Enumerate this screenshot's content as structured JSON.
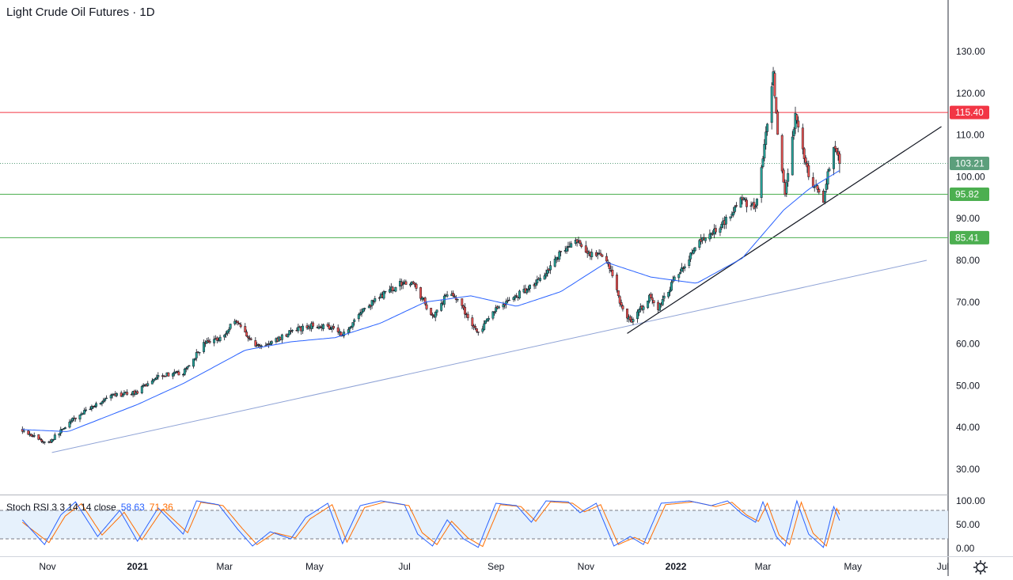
{
  "title": "Light Crude Oil Futures · 1D",
  "chart_data": {
    "type": "candlestick",
    "symbol": "Light Crude Oil Futures",
    "interval": "1D",
    "x_axis": {
      "tick_labels": [
        "Nov",
        "2021",
        "Mar",
        "May",
        "Jul",
        "Sep",
        "Nov",
        "2022",
        "Mar",
        "May",
        "Jul"
      ]
    },
    "y_axis": {
      "tick_labels": [
        "130.00",
        "120.00",
        "110.00",
        "100.00",
        "90.00",
        "80.00",
        "70.00",
        "60.00",
        "50.00",
        "40.00",
        "30.00"
      ],
      "ylim": [
        24,
        140
      ]
    },
    "anchor_points": [
      {
        "x": "2020-10-15",
        "close": 39.5
      },
      {
        "x": "2020-11-01",
        "close": 36.0
      },
      {
        "x": "2020-11-15",
        "close": 41.0
      },
      {
        "x": "2020-12-01",
        "close": 45.0
      },
      {
        "x": "2020-12-15",
        "close": 47.5
      },
      {
        "x": "2021-01-01",
        "close": 48.5
      },
      {
        "x": "2021-01-15",
        "close": 52.5
      },
      {
        "x": "2021-02-01",
        "close": 53.0
      },
      {
        "x": "2021-02-15",
        "close": 60.0
      },
      {
        "x": "2021-03-01",
        "close": 62.0
      },
      {
        "x": "2021-03-08",
        "close": 66.0
      },
      {
        "x": "2021-03-22",
        "close": 59.5
      },
      {
        "x": "2021-04-01",
        "close": 60.0
      },
      {
        "x": "2021-04-15",
        "close": 63.0
      },
      {
        "x": "2021-05-01",
        "close": 64.5
      },
      {
        "x": "2021-05-15",
        "close": 64.0
      },
      {
        "x": "2021-05-20",
        "close": 62.0
      },
      {
        "x": "2021-06-01",
        "close": 67.5
      },
      {
        "x": "2021-06-15",
        "close": 71.5
      },
      {
        "x": "2021-07-01",
        "close": 75.0
      },
      {
        "x": "2021-07-08",
        "close": 74.0
      },
      {
        "x": "2021-07-20",
        "close": 66.5
      },
      {
        "x": "2021-08-01",
        "close": 73.0
      },
      {
        "x": "2021-08-20",
        "close": 62.5
      },
      {
        "x": "2021-09-01",
        "close": 68.5
      },
      {
        "x": "2021-09-15",
        "close": 71.5
      },
      {
        "x": "2021-10-01",
        "close": 75.5
      },
      {
        "x": "2021-10-15",
        "close": 82.0
      },
      {
        "x": "2021-10-25",
        "close": 84.5
      },
      {
        "x": "2021-11-01",
        "close": 82.0
      },
      {
        "x": "2021-11-15",
        "close": 80.5
      },
      {
        "x": "2021-11-26",
        "close": 68.0
      },
      {
        "x": "2021-12-02",
        "close": 65.5
      },
      {
        "x": "2021-12-15",
        "close": 71.5
      },
      {
        "x": "2021-12-20",
        "close": 68.5
      },
      {
        "x": "2022-01-01",
        "close": 76.0
      },
      {
        "x": "2022-01-15",
        "close": 83.5
      },
      {
        "x": "2022-02-01",
        "close": 88.5
      },
      {
        "x": "2022-02-14",
        "close": 94.5
      },
      {
        "x": "2022-02-24",
        "close": 92.5
      },
      {
        "x": "2022-03-01",
        "close": 104.0
      },
      {
        "x": "2022-03-08",
        "close": 124.0
      },
      {
        "x": "2022-03-11",
        "close": 109.5
      },
      {
        "x": "2022-03-16",
        "close": 95.0
      },
      {
        "x": "2022-03-23",
        "close": 114.5
      },
      {
        "x": "2022-04-01",
        "close": 100.0
      },
      {
        "x": "2022-04-11",
        "close": 94.5
      },
      {
        "x": "2022-04-18",
        "close": 108.0
      },
      {
        "x": "2022-04-22",
        "close": 103.21
      }
    ],
    "moving_average_50": [
      {
        "x": "2020-10-15",
        "y": 39.5
      },
      {
        "x": "2020-11-15",
        "y": 39.0
      },
      {
        "x": "2021-01-01",
        "y": 45.5
      },
      {
        "x": "2021-02-01",
        "y": 50.5
      },
      {
        "x": "2021-03-15",
        "y": 58.5
      },
      {
        "x": "2021-04-15",
        "y": 60.5
      },
      {
        "x": "2021-05-15",
        "y": 61.5
      },
      {
        "x": "2021-06-15",
        "y": 65.0
      },
      {
        "x": "2021-07-15",
        "y": 70.0
      },
      {
        "x": "2021-08-15",
        "y": 71.5
      },
      {
        "x": "2021-09-15",
        "y": 69.0
      },
      {
        "x": "2021-10-15",
        "y": 72.5
      },
      {
        "x": "2021-11-15",
        "y": 79.5
      },
      {
        "x": "2021-12-15",
        "y": 76.0
      },
      {
        "x": "2022-01-15",
        "y": 74.5
      },
      {
        "x": "2022-02-15",
        "y": 80.5
      },
      {
        "x": "2022-03-15",
        "y": 92.0
      },
      {
        "x": "2022-04-01",
        "y": 97.0
      },
      {
        "x": "2022-04-22",
        "y": 101.5
      }
    ],
    "horizontal_levels": [
      {
        "label": "115.40",
        "value": 115.4,
        "color": "#f23645"
      },
      {
        "label": "95.82",
        "value": 95.82,
        "color": "#4caf50"
      },
      {
        "label": "85.41",
        "value": 85.41,
        "color": "#4caf50"
      }
    ],
    "last_price": {
      "label": "103.21",
      "value": 103.21,
      "color": "#5c9f7c"
    },
    "trendlines": [
      {
        "from": {
          "x": "2020-11-04",
          "y": 34.0
        },
        "to": {
          "x": "2022-06-20",
          "y": 80.0
        },
        "color": "#8fa3d6"
      },
      {
        "from": {
          "x": "2021-11-29",
          "y": 62.5
        },
        "to": {
          "x": "2022-06-30",
          "y": 112.0
        },
        "color": "#131722"
      }
    ],
    "stoch_rsi": {
      "label": "Stoch RSI 3 3 14 14 close",
      "k_value": "58.63",
      "d_value": "71.36",
      "tick_labels": [
        "100.00",
        "50.00",
        "0.00"
      ],
      "ylim": [
        -5,
        105
      ],
      "bands": [
        20,
        80
      ],
      "k_anchors": [
        {
          "x": "2020-10-15",
          "y": 60
        },
        {
          "x": "2020-10-30",
          "y": 8
        },
        {
          "x": "2020-11-10",
          "y": 70
        },
        {
          "x": "2020-11-20",
          "y": 98
        },
        {
          "x": "2020-12-05",
          "y": 25
        },
        {
          "x": "2020-12-20",
          "y": 80
        },
        {
          "x": "2021-01-01",
          "y": 15
        },
        {
          "x": "2021-01-15",
          "y": 85
        },
        {
          "x": "2021-02-01",
          "y": 30
        },
        {
          "x": "2021-02-10",
          "y": 100
        },
        {
          "x": "2021-02-25",
          "y": 92
        },
        {
          "x": "2021-03-10",
          "y": 40
        },
        {
          "x": "2021-03-20",
          "y": 5
        },
        {
          "x": "2021-04-01",
          "y": 35
        },
        {
          "x": "2021-04-15",
          "y": 20
        },
        {
          "x": "2021-04-25",
          "y": 65
        },
        {
          "x": "2021-05-10",
          "y": 95
        },
        {
          "x": "2021-05-20",
          "y": 10
        },
        {
          "x": "2021-06-01",
          "y": 90
        },
        {
          "x": "2021-06-15",
          "y": 100
        },
        {
          "x": "2021-07-01",
          "y": 92
        },
        {
          "x": "2021-07-10",
          "y": 30
        },
        {
          "x": "2021-07-20",
          "y": 5
        },
        {
          "x": "2021-07-30",
          "y": 60
        },
        {
          "x": "2021-08-10",
          "y": 20
        },
        {
          "x": "2021-08-20",
          "y": 2
        },
        {
          "x": "2021-09-01",
          "y": 95
        },
        {
          "x": "2021-09-15",
          "y": 90
        },
        {
          "x": "2021-09-25",
          "y": 55
        },
        {
          "x": "2021-10-05",
          "y": 100
        },
        {
          "x": "2021-10-20",
          "y": 98
        },
        {
          "x": "2021-10-28",
          "y": 75
        },
        {
          "x": "2021-11-08",
          "y": 95
        },
        {
          "x": "2021-11-20",
          "y": 5
        },
        {
          "x": "2021-12-01",
          "y": 25
        },
        {
          "x": "2021-12-10",
          "y": 8
        },
        {
          "x": "2021-12-22",
          "y": 95
        },
        {
          "x": "2022-01-10",
          "y": 100
        },
        {
          "x": "2022-01-25",
          "y": 90
        },
        {
          "x": "2022-02-05",
          "y": 100
        },
        {
          "x": "2022-02-15",
          "y": 72
        },
        {
          "x": "2022-02-24",
          "y": 55
        },
        {
          "x": "2022-03-01",
          "y": 98
        },
        {
          "x": "2022-03-10",
          "y": 25
        },
        {
          "x": "2022-03-16",
          "y": 5
        },
        {
          "x": "2022-03-24",
          "y": 100
        },
        {
          "x": "2022-04-01",
          "y": 30
        },
        {
          "x": "2022-04-11",
          "y": 2
        },
        {
          "x": "2022-04-18",
          "y": 88
        },
        {
          "x": "2022-04-22",
          "y": 58.63
        }
      ],
      "d_anchors": [
        {
          "x": "2020-10-15",
          "y": 55
        },
        {
          "x": "2020-11-02",
          "y": 12
        },
        {
          "x": "2020-11-13",
          "y": 68
        },
        {
          "x": "2020-11-24",
          "y": 94
        },
        {
          "x": "2020-12-08",
          "y": 28
        },
        {
          "x": "2020-12-23",
          "y": 76
        },
        {
          "x": "2021-01-04",
          "y": 18
        },
        {
          "x": "2021-01-18",
          "y": 82
        },
        {
          "x": "2021-02-04",
          "y": 33
        },
        {
          "x": "2021-02-13",
          "y": 97
        },
        {
          "x": "2021-02-28",
          "y": 90
        },
        {
          "x": "2021-03-13",
          "y": 42
        },
        {
          "x": "2021-03-23",
          "y": 8
        },
        {
          "x": "2021-04-04",
          "y": 33
        },
        {
          "x": "2021-04-18",
          "y": 22
        },
        {
          "x": "2021-04-28",
          "y": 62
        },
        {
          "x": "2021-05-13",
          "y": 92
        },
        {
          "x": "2021-05-23",
          "y": 13
        },
        {
          "x": "2021-06-04",
          "y": 86
        },
        {
          "x": "2021-06-18",
          "y": 98
        },
        {
          "x": "2021-07-04",
          "y": 90
        },
        {
          "x": "2021-07-13",
          "y": 33
        },
        {
          "x": "2021-07-23",
          "y": 8
        },
        {
          "x": "2021-08-02",
          "y": 57
        },
        {
          "x": "2021-08-13",
          "y": 22
        },
        {
          "x": "2021-08-23",
          "y": 4
        },
        {
          "x": "2021-09-04",
          "y": 92
        },
        {
          "x": "2021-09-18",
          "y": 88
        },
        {
          "x": "2021-09-28",
          "y": 57
        },
        {
          "x": "2021-10-08",
          "y": 98
        },
        {
          "x": "2021-10-23",
          "y": 95
        },
        {
          "x": "2021-10-31",
          "y": 77
        },
        {
          "x": "2021-11-11",
          "y": 92
        },
        {
          "x": "2021-11-23",
          "y": 8
        },
        {
          "x": "2021-12-04",
          "y": 23
        },
        {
          "x": "2021-12-13",
          "y": 10
        },
        {
          "x": "2021-12-25",
          "y": 92
        },
        {
          "x": "2022-01-13",
          "y": 98
        },
        {
          "x": "2022-01-28",
          "y": 88
        },
        {
          "x": "2022-02-08",
          "y": 97
        },
        {
          "x": "2022-02-18",
          "y": 70
        },
        {
          "x": "2022-02-26",
          "y": 57
        },
        {
          "x": "2022-03-04",
          "y": 95
        },
        {
          "x": "2022-03-12",
          "y": 28
        },
        {
          "x": "2022-03-19",
          "y": 8
        },
        {
          "x": "2022-03-27",
          "y": 97
        },
        {
          "x": "2022-04-04",
          "y": 32
        },
        {
          "x": "2022-04-13",
          "y": 5
        },
        {
          "x": "2022-04-20",
          "y": 84
        },
        {
          "x": "2022-04-22",
          "y": 71.36
        }
      ]
    },
    "colors": {
      "up": "#26a69a",
      "down": "#ef5350",
      "candle_border": "#131722",
      "ma": "#2962ff",
      "k": "#2962ff",
      "d": "#ff6d00"
    },
    "grid": false
  }
}
